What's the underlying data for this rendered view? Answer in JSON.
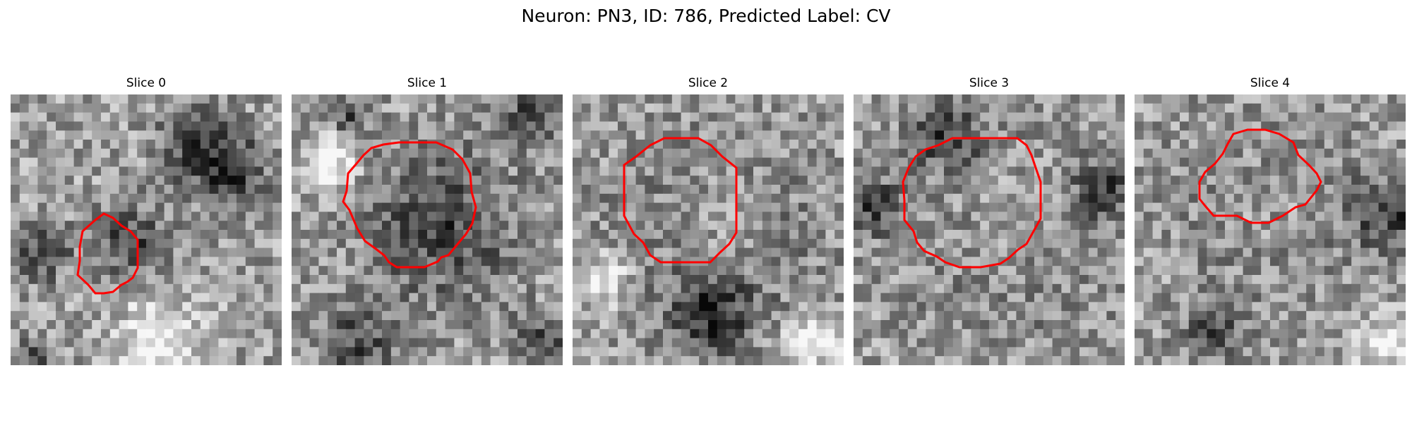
{
  "figure": {
    "title": "Neuron: PN3, ID: 786, Predicted Label: CV"
  },
  "slices": [
    {
      "title": "Slice 0"
    },
    {
      "title": "Slice 1"
    },
    {
      "title": "Slice 2"
    },
    {
      "title": "Slice 3"
    },
    {
      "title": "Slice 4"
    }
  ],
  "colors": {
    "contour": "#ff0000",
    "background": "#ffffff"
  }
}
